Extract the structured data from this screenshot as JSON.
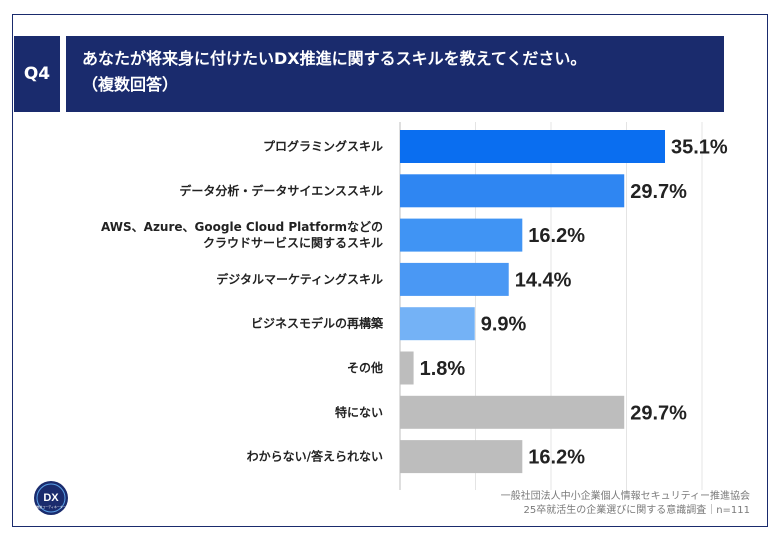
{
  "question": {
    "badge": "Q4",
    "title_line1": "あなたが将来身に付けたいDX推進に関するスキルを教えてください。",
    "title_line2": "（複数回答）"
  },
  "chart_data": {
    "type": "bar",
    "orientation": "horizontal",
    "xlim": [
      0,
      40
    ],
    "grid": true,
    "categories": [
      [
        "プログラミングスキル"
      ],
      [
        "データ分析・データサイエンススキル"
      ],
      [
        "AWS、Azure、Google Cloud Platformなどの",
        "クラウドサービスに関するスキル"
      ],
      [
        "デジタルマーケティングスキル"
      ],
      [
        "ビジネスモデルの再構築"
      ],
      [
        "その他"
      ],
      [
        "特にない"
      ],
      [
        "わからない/答えられない"
      ]
    ],
    "values": [
      35.1,
      29.7,
      16.2,
      14.4,
      9.9,
      1.8,
      29.7,
      16.2
    ],
    "value_labels": [
      "35.1%",
      "29.7%",
      "16.2%",
      "14.4%",
      "9.9%",
      "1.8%",
      "29.7%",
      "16.2%"
    ],
    "bar_colors": [
      "#0a6ef0",
      "#2f86f2",
      "#4094f4",
      "#4a98f4",
      "#74b2f6",
      "#bdbdbd",
      "#bdbdbd",
      "#bdbdbd"
    ]
  },
  "source": {
    "line1": "一般社団法人中小企業個人情報セキュリティー推進協会",
    "line2": "25卒就活生の企業選びに関する意識調査｜n=111"
  },
  "logo": {
    "text": "DX",
    "subtext": "推進コーディネーター"
  }
}
